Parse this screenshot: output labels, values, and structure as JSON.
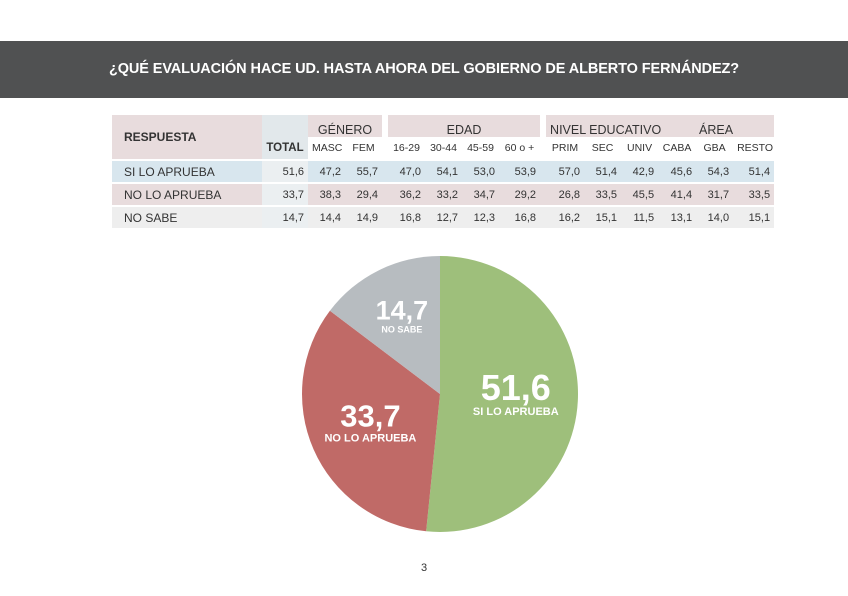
{
  "title": "¿QUÉ EVALUACIÓN HACE UD. HASTA AHORA DEL GOBIERNO DE ALBERTO FERNÁNDEZ?",
  "table": {
    "response_header": "RESPUESTA",
    "groups": [
      "GÉNERO",
      "EDAD",
      "NIVEL EDUCATIVO",
      "ÁREA"
    ],
    "columns": [
      "TOTAL",
      "MASC",
      "FEM",
      "16-29",
      "30-44",
      "45-59",
      "60 o +",
      "PRIM",
      "SEC",
      "UNIV",
      "CABA",
      "GBA",
      "RESTO"
    ],
    "rows": [
      {
        "label": "SI LO APRUEBA",
        "values": [
          "51,6",
          "47,2",
          "55,7",
          "47,0",
          "54,1",
          "53,0",
          "53,9",
          "57,0",
          "51,4",
          "42,9",
          "45,6",
          "54,3",
          "51,4"
        ]
      },
      {
        "label": "NO LO APRUEBA",
        "values": [
          "33,7",
          "38,3",
          "29,4",
          "36,2",
          "33,2",
          "34,7",
          "29,2",
          "26,8",
          "33,5",
          "45,5",
          "41,4",
          "31,7",
          "33,5"
        ]
      },
      {
        "label": "NO SABE",
        "values": [
          "14,7",
          "14,4",
          "14,9",
          "16,8",
          "12,7",
          "12,3",
          "16,8",
          "16,2",
          "15,1",
          "11,5",
          "13,1",
          "14,0",
          "15,1"
        ]
      }
    ]
  },
  "chart_data": {
    "type": "pie",
    "slices": [
      {
        "label": "SI LO APRUEBA",
        "value": 51.6,
        "display": "51,6",
        "color": "#9ebf7b"
      },
      {
        "label": "NO LO APRUEBA",
        "value": 33.7,
        "display": "33,7",
        "color": "#c06a67"
      },
      {
        "label": "NO SABE",
        "value": 14.7,
        "display": "14,7",
        "color": "#b7bcc0"
      }
    ]
  },
  "page_number": "3"
}
